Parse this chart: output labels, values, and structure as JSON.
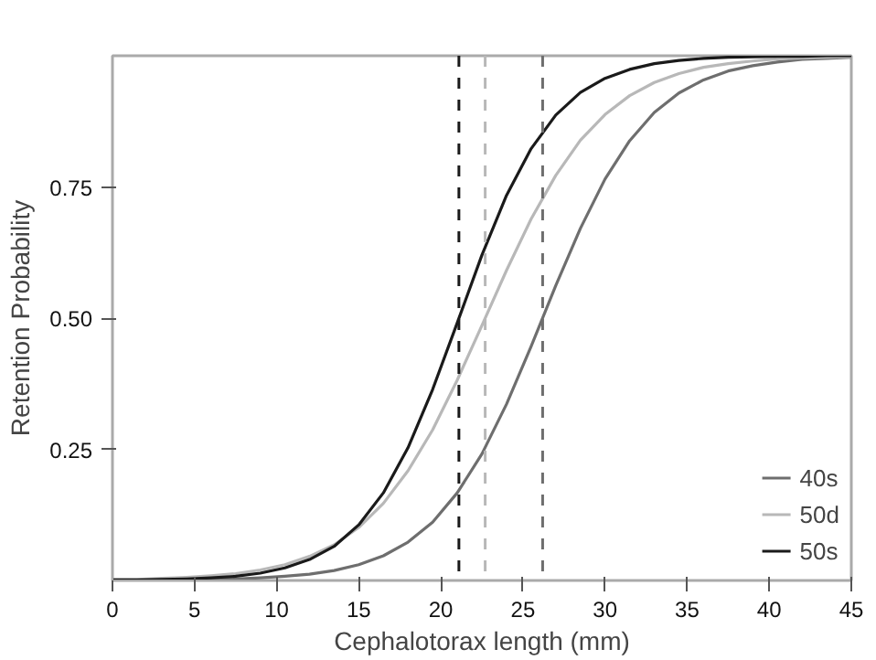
{
  "chart_data": {
    "type": "line",
    "xlabel": "Cephalotorax length (mm)",
    "ylabel": "Retention Probability",
    "x": [
      0,
      1.5,
      3,
      4.5,
      6,
      7.5,
      9,
      10.5,
      12,
      13.5,
      15,
      16.5,
      18,
      19.5,
      21,
      22.5,
      24,
      25.5,
      27,
      28.5,
      30,
      31.5,
      33,
      34.5,
      36,
      37.5,
      39,
      40.5,
      42,
      43.5,
      45
    ],
    "series": [
      {
        "name": "40s",
        "color": "#6e6e6e",
        "values": [
          0.0,
          0.0,
          0.001,
          0.001,
          0.002,
          0.003,
          0.005,
          0.008,
          0.012,
          0.019,
          0.03,
          0.047,
          0.073,
          0.111,
          0.167,
          0.241,
          0.336,
          0.446,
          0.562,
          0.671,
          0.765,
          0.838,
          0.892,
          0.929,
          0.954,
          0.971,
          0.981,
          0.988,
          0.993,
          0.995,
          0.997
        ]
      },
      {
        "name": "50d",
        "color": "#b8b8b8",
        "values": [
          0.002,
          0.002,
          0.004,
          0.006,
          0.009,
          0.013,
          0.02,
          0.03,
          0.046,
          0.068,
          0.101,
          0.147,
          0.209,
          0.287,
          0.382,
          0.486,
          0.591,
          0.689,
          0.772,
          0.839,
          0.888,
          0.924,
          0.949,
          0.966,
          0.978,
          0.985,
          0.99,
          0.994,
          0.996,
          0.997,
          0.998
        ]
      },
      {
        "name": "50s",
        "color": "#1a1a1a",
        "values": [
          0.001,
          0.001,
          0.002,
          0.003,
          0.005,
          0.008,
          0.014,
          0.024,
          0.04,
          0.065,
          0.106,
          0.167,
          0.253,
          0.364,
          0.491,
          0.62,
          0.734,
          0.823,
          0.887,
          0.93,
          0.957,
          0.974,
          0.985,
          0.991,
          0.995,
          0.997,
          0.998,
          0.999,
          0.999,
          1.0,
          1.0
        ]
      }
    ],
    "xlim": [
      0,
      45
    ],
    "xticks": [
      0,
      5,
      10,
      15,
      20,
      25,
      30,
      35,
      40,
      45
    ],
    "ylim": [
      0,
      1
    ],
    "yticks": [
      0.75,
      {
        "value": 0.5,
        "label": "0.50"
      },
      0.25
    ],
    "ref_lines": [
      {
        "axis": "x",
        "value": 21.1,
        "color": "#1a1a1a",
        "line_style": "dashed"
      },
      {
        "axis": "x",
        "value": 22.7,
        "color": "#b8b8b8",
        "line_style": "dashed"
      },
      {
        "axis": "x",
        "value": 26.2,
        "color": "#6e6e6e",
        "line_style": "dashed"
      }
    ],
    "grid": false,
    "legend": "bottom right",
    "line_style": "solid"
  }
}
